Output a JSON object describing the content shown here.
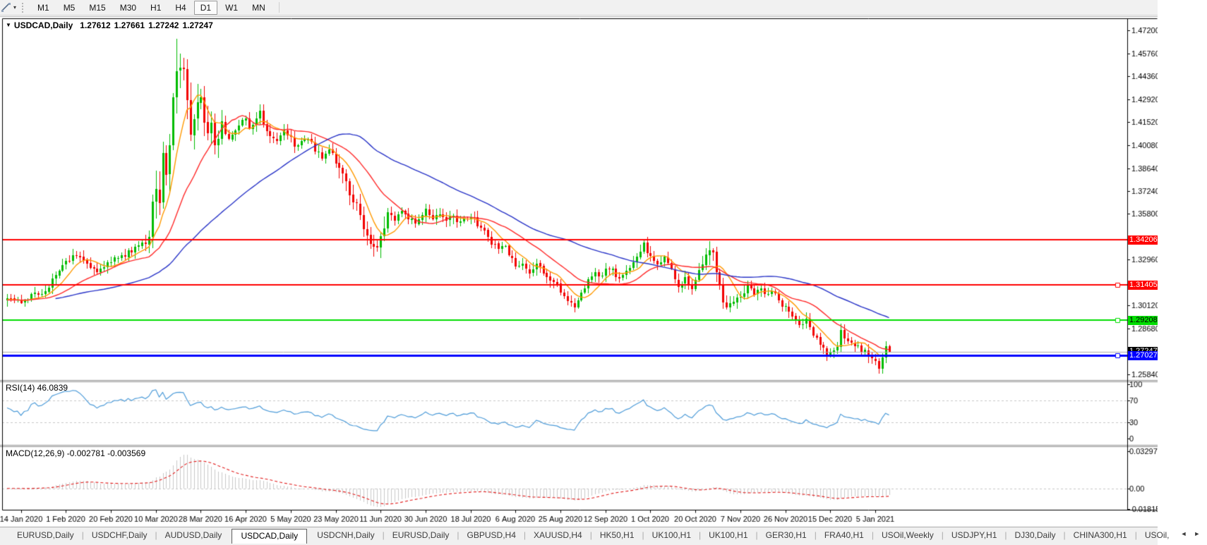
{
  "toolbar": {
    "drawing_tool_icon": "trendline-tool",
    "dropdown_caret": "▾",
    "timeframes": [
      "M1",
      "M5",
      "M15",
      "M30",
      "H1",
      "H4",
      "D1",
      "W1",
      "MN"
    ],
    "active_timeframe": "D1"
  },
  "chart_header": {
    "collapse_icon": "▼",
    "symbol": "USDCAD,Daily",
    "open": "1.27612",
    "high": "1.27661",
    "low": "1.27242",
    "close": "1.27247"
  },
  "price_axis": {
    "tick_labels": [
      "1.47200",
      "1.45760",
      "1.44360",
      "1.42920",
      "1.41520",
      "1.40080",
      "1.38640",
      "1.37240",
      "1.35800",
      "1.32960",
      "1.30120",
      "1.28680",
      "1.25840"
    ]
  },
  "price_lines": [
    {
      "price": 1.34206,
      "label": "1.34206",
      "color": "#FF0000",
      "text_color": "#FFFFFF",
      "width": 2,
      "handle": false
    },
    {
      "price": 1.31405,
      "label": "1.31405",
      "color": "#FF0000",
      "text_color": "#FFFFFF",
      "width": 2,
      "handle": true
    },
    {
      "price": 1.29208,
      "label": "1.29208",
      "color": "#00DD00",
      "text_color": "#000000",
      "width": 2,
      "handle": true
    },
    {
      "price": 1.27027,
      "label": "1.27027",
      "color": "#0000FF",
      "text_color": "#FFFFFF",
      "width": 3,
      "handle": true
    }
  ],
  "current_price": {
    "value": 1.27247,
    "label": "1.27247",
    "bg": "#000000",
    "text_color": "#FFFFFF",
    "line_color": "#ABABAB"
  },
  "rsi_panel": {
    "label": "RSI(14) 46.0839",
    "tick_labels": [
      "100",
      "70",
      "30",
      "0"
    ],
    "level_lines": [
      70,
      30
    ],
    "line_color": "#4E9CD9"
  },
  "macd_panel": {
    "label": "MACD(12,26,9) -0.002781 -0.003569",
    "tick_labels": [
      "0.032972",
      "0.00",
      "-0.018154"
    ],
    "histogram_color": "#C9C9C9",
    "signal_color": "#E21B1B"
  },
  "date_axis": {
    "labels": [
      "14 Jan 2020",
      "1 Feb 2020",
      "20 Feb 2020",
      "10 Mar 2020",
      "28 Mar 2020",
      "16 Apr 2020",
      "5 May 2020",
      "23 May 2020",
      "11 Jun 2020",
      "30 Jun 2020",
      "18 Jul 2020",
      "6 Aug 2020",
      "25 Aug 2020",
      "12 Sep 2020",
      "1 Oct 2020",
      "20 Oct 2020",
      "7 Nov 2020",
      "26 Nov 2020",
      "15 Dec 2020",
      "5 Jan 2021"
    ],
    "first_candle_index": 4,
    "candle_step": 13
  },
  "tabs": {
    "items": [
      "EURUSD,Daily",
      "USDCHF,Daily",
      "AUDUSD,Daily",
      "USDCAD,Daily",
      "USDCNH,Daily",
      "EURUSD,Daily",
      "GBPUSD,H4",
      "XAUUSD,H4",
      "HK50,H1",
      "UK100,H1",
      "UK100,H1",
      "GER30,H1",
      "FRA40,H1",
      "USOil,Weekly",
      "USDJPY,H1",
      "DJ30,Daily",
      "CHINA300,H1",
      "USOil,"
    ],
    "active_index": 3,
    "scroll_left_icon": "◄",
    "scroll_right_icon": "►"
  },
  "chart_data": {
    "type": "candlestick",
    "symbol": "USDCAD",
    "period": "Daily",
    "candle_count": 256,
    "ylim": [
      1.2584,
      1.472
    ],
    "up_color": "#00BB00",
    "down_color": "#F20000",
    "close_anchors": [
      [
        0,
        1.3055
      ],
      [
        2,
        1.304
      ],
      [
        4,
        1.3028
      ],
      [
        6,
        1.3062
      ],
      [
        8,
        1.3082
      ],
      [
        10,
        1.308
      ],
      [
        12,
        1.313
      ],
      [
        14,
        1.3215
      ],
      [
        16,
        1.3265
      ],
      [
        18,
        1.3298
      ],
      [
        20,
        1.332
      ],
      [
        22,
        1.3288
      ],
      [
        24,
        1.3252
      ],
      [
        26,
        1.323
      ],
      [
        28,
        1.3258
      ],
      [
        30,
        1.3285
      ],
      [
        32,
        1.3308
      ],
      [
        34,
        1.333
      ],
      [
        36,
        1.3348
      ],
      [
        38,
        1.339
      ],
      [
        40,
        1.341
      ],
      [
        41,
        1.342
      ],
      [
        42,
        1.37
      ],
      [
        43,
        1.3745
      ],
      [
        44,
        1.3655
      ],
      [
        45,
        1.3925
      ],
      [
        46,
        1.381
      ],
      [
        47,
        1.4
      ],
      [
        48,
        1.427
      ],
      [
        49,
        1.45
      ],
      [
        50,
        1.444
      ],
      [
        51,
        1.4445
      ],
      [
        52,
        1.425
      ],
      [
        53,
        1.406
      ],
      [
        54,
        1.418
      ],
      [
        55,
        1.425
      ],
      [
        56,
        1.4285
      ],
      [
        57,
        1.419
      ],
      [
        58,
        1.406
      ],
      [
        59,
        1.413
      ],
      [
        60,
        1.401
      ],
      [
        61,
        1.408
      ],
      [
        62,
        1.415
      ],
      [
        64,
        1.4035
      ],
      [
        66,
        1.409
      ],
      [
        68,
        1.4155
      ],
      [
        69,
        1.4185
      ],
      [
        70,
        1.4105
      ],
      [
        72,
        1.417
      ],
      [
        73,
        1.423
      ],
      [
        74,
        1.413
      ],
      [
        76,
        1.406
      ],
      [
        78,
        1.402
      ],
      [
        80,
        1.409
      ],
      [
        82,
        1.4065
      ],
      [
        83,
        1.399
      ],
      [
        85,
        1.402
      ],
      [
        87,
        1.4055
      ],
      [
        89,
        1.398
      ],
      [
        91,
        1.393
      ],
      [
        93,
        1.398
      ],
      [
        95,
        1.392
      ],
      [
        97,
        1.384
      ],
      [
        99,
        1.3695
      ],
      [
        101,
        1.362
      ],
      [
        103,
        1.3505
      ],
      [
        105,
        1.342
      ],
      [
        107,
        1.3385
      ],
      [
        108,
        1.3435
      ],
      [
        110,
        1.359
      ],
      [
        112,
        1.3545
      ],
      [
        114,
        1.3615
      ],
      [
        116,
        1.356
      ],
      [
        118,
        1.352
      ],
      [
        120,
        1.3565
      ],
      [
        121,
        1.36
      ],
      [
        123,
        1.355
      ],
      [
        125,
        1.358
      ],
      [
        127,
        1.3535
      ],
      [
        129,
        1.356
      ],
      [
        131,
        1.3525
      ],
      [
        133,
        1.355
      ],
      [
        134,
        1.357
      ],
      [
        136,
        1.352
      ],
      [
        138,
        1.3465
      ],
      [
        140,
        1.3405
      ],
      [
        142,
        1.3375
      ],
      [
        144,
        1.337
      ],
      [
        146,
        1.3305
      ],
      [
        147,
        1.327
      ],
      [
        149,
        1.3265
      ],
      [
        151,
        1.322
      ],
      [
        153,
        1.327
      ],
      [
        155,
        1.321
      ],
      [
        157,
        1.318
      ],
      [
        159,
        1.315
      ],
      [
        160,
        1.31
      ],
      [
        162,
        1.3035
      ],
      [
        164,
        1.2997
      ],
      [
        166,
        1.3085
      ],
      [
        168,
        1.3175
      ],
      [
        170,
        1.3225
      ],
      [
        172,
        1.3185
      ],
      [
        173,
        1.3235
      ],
      [
        175,
        1.324
      ],
      [
        177,
        1.3165
      ],
      [
        179,
        1.3215
      ],
      [
        181,
        1.3275
      ],
      [
        183,
        1.3345
      ],
      [
        184,
        1.3405
      ],
      [
        185,
        1.335
      ],
      [
        186,
        1.332
      ],
      [
        188,
        1.3265
      ],
      [
        190,
        1.3305
      ],
      [
        192,
        1.3225
      ],
      [
        194,
        1.313
      ],
      [
        196,
        1.318
      ],
      [
        198,
        1.3125
      ],
      [
        199,
        1.315
      ],
      [
        200,
        1.321
      ],
      [
        202,
        1.331
      ],
      [
        203,
        1.3375
      ],
      [
        204,
        1.334
      ],
      [
        205,
        1.324
      ],
      [
        206,
        1.312
      ],
      [
        207,
        1.304
      ],
      [
        208,
        1.2995
      ],
      [
        210,
        1.302
      ],
      [
        212,
        1.306
      ],
      [
        214,
        1.313
      ],
      [
        216,
        1.308
      ],
      [
        218,
        1.3105
      ],
      [
        220,
        1.3075
      ],
      [
        222,
        1.3095
      ],
      [
        224,
        1.302
      ],
      [
        225,
        1.3005
      ],
      [
        227,
        1.2935
      ],
      [
        229,
        1.2895
      ],
      [
        231,
        1.2915
      ],
      [
        233,
        1.284
      ],
      [
        235,
        1.277
      ],
      [
        237,
        1.2705
      ],
      [
        238,
        1.2715
      ],
      [
        240,
        1.2745
      ],
      [
        241,
        1.2845
      ],
      [
        243,
        1.28
      ],
      [
        245,
        1.276
      ],
      [
        247,
        1.2735
      ],
      [
        249,
        1.2705
      ],
      [
        251,
        1.2665
      ],
      [
        252,
        1.262
      ],
      [
        253,
        1.269
      ],
      [
        254,
        1.2758
      ],
      [
        255,
        1.27247
      ]
    ],
    "forced": {
      "49": {
        "high": 1.4668
      },
      "252": {
        "low": 1.259
      }
    },
    "last_candle": {
      "open": 1.27612,
      "high": 1.27661,
      "low": 1.27242,
      "close": 1.27247
    },
    "moving_averages": [
      {
        "period": 8,
        "type": "sma",
        "color": "#FF9900"
      },
      {
        "period": 21,
        "type": "sma",
        "color": "#FF2B2B"
      },
      {
        "period": 55,
        "type": "sma",
        "color": "#2A35C8"
      }
    ],
    "rsi": {
      "period": 14,
      "current": 46.0839
    },
    "macd": {
      "fast": 12,
      "slow": 26,
      "signal": 9,
      "macd_current": -0.002781,
      "signal_current": -0.003569
    }
  }
}
